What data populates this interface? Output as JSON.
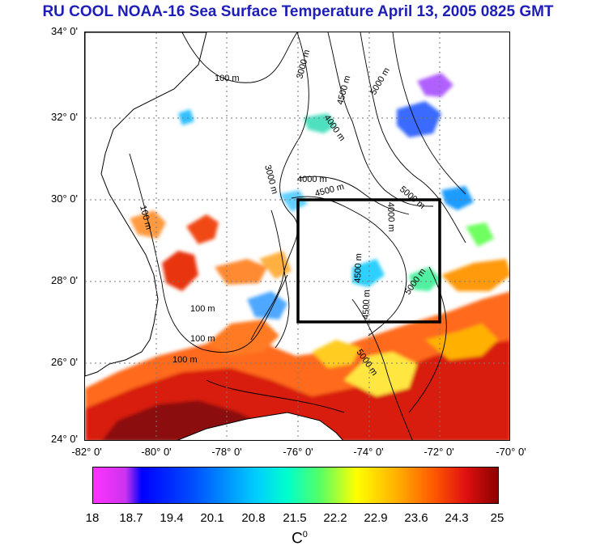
{
  "title": "RU COOL  NOAA-16 Sea Surface Temperature April 13, 2005 0825 GMT",
  "map": {
    "lat_labels": [
      "34° 0'",
      "32° 0'",
      "30° 0'",
      "28° 0'",
      "26° 0'",
      "24° 0'"
    ],
    "lon_labels": [
      "-82° 0'",
      "-80° 0'",
      "-78° 0'",
      "-76° 0'",
      "-74° 0'",
      "-72° 0'",
      "-70° 0'"
    ],
    "contour_labels": [
      "100 m",
      "3000 m",
      "4500 m",
      "5000 m",
      "4000 m",
      "4000 m",
      "4500 m",
      "5000 m",
      "3000 m",
      "100 m",
      "4000 m",
      "4500 m",
      "4500 m",
      "5000 m",
      "100 m",
      "100 m",
      "100 m",
      "5000 m"
    ],
    "box": {
      "lon_min": -76,
      "lon_max": -72,
      "lat_min": 27,
      "lat_max": 30
    },
    "colors": {
      "box": "#000000",
      "coast": "#000000",
      "grid": "#777777"
    }
  },
  "colorbar": {
    "ticks": [
      "18",
      "18.7",
      "19.4",
      "20.1",
      "20.8",
      "21.5",
      "22.2",
      "22.9",
      "23.6",
      "24.3",
      "25"
    ],
    "unit": "C",
    "unit_sup": "0",
    "min": 18,
    "max": 25
  }
}
